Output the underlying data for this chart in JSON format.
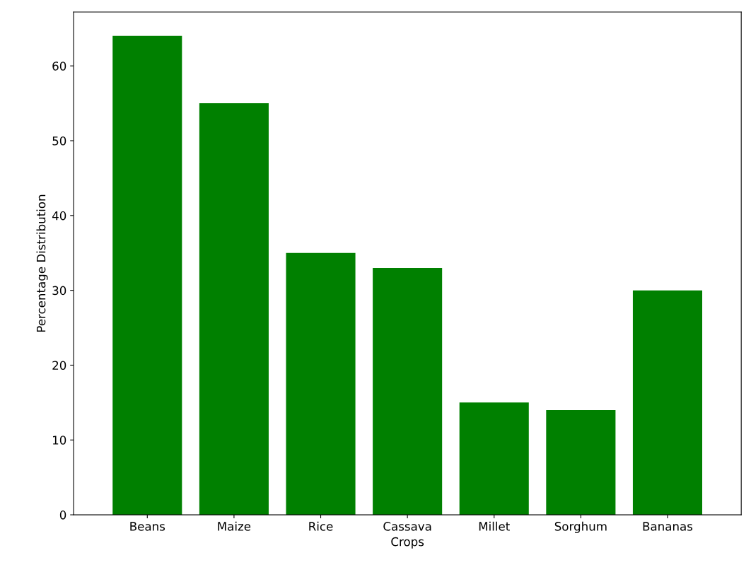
{
  "chart_data": {
    "type": "bar",
    "xlabel": "Crops",
    "ylabel": "Percentage Distribution",
    "categories": [
      "Beans",
      "Maize",
      "Rice",
      "Cassava",
      "Millet",
      "Sorghum",
      "Bananas"
    ],
    "values": [
      64,
      55,
      35,
      33,
      15,
      14,
      30
    ],
    "color": "#008000",
    "ylim": [
      0,
      67.2
    ],
    "yticks": [
      0,
      10,
      20,
      30,
      40,
      50,
      60
    ],
    "grid": false
  }
}
